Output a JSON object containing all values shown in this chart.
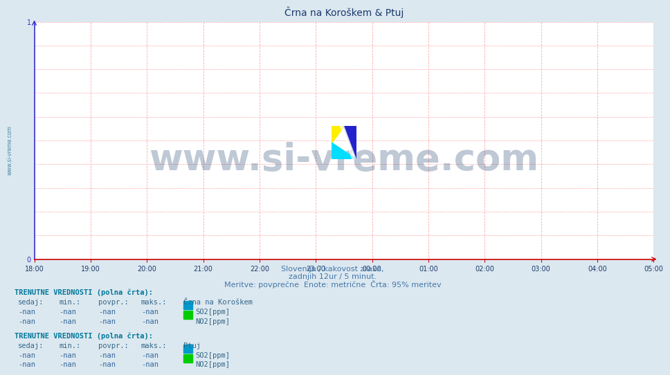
{
  "title": "Črna na Koroškem & Ptuj",
  "title_fontsize": 10,
  "title_color": "#1a3a6b",
  "bg_color": "#dce8f0",
  "plot_bg_color": "#ffffff",
  "x_ticks": [
    "18:00",
    "19:00",
    "20:00",
    "21:00",
    "22:00",
    "23:00",
    "00:00",
    "01:00",
    "02:00",
    "03:00",
    "04:00",
    "05:00"
  ],
  "x_tick_count": 12,
  "ylim": [
    0,
    1
  ],
  "yticks": [
    0,
    1
  ],
  "grid_color": "#ffaaaa",
  "axis_color_x": "#cc0000",
  "axis_color_y": "#3333cc",
  "subtitle1": "Slovenija / kakovost zraka,",
  "subtitle2": "zadnjih 12ur / 5 minut.",
  "subtitle3": "Meritve: povprečne  Enote: metrične  Črta: 95% meritev",
  "subtitle_color": "#4477aa",
  "subtitle_fontsize": 8,
  "watermark": "www.si-vreme.com",
  "watermark_color": "#1a3a6b",
  "watermark_fontsize": 38,
  "watermark_alpha": 0.28,
  "table1_header": "TRENUTNE VREDNOSTI (polna črta):",
  "table1_location": "Črna na Koroškem",
  "table1_cols": [
    "sedaj:",
    "min.:",
    "povpr.:",
    "maks.:"
  ],
  "table1_row1": [
    "-nan",
    "-nan",
    "-nan",
    "-nan"
  ],
  "table1_row2": [
    "-nan",
    "-nan",
    "-nan",
    "-nan"
  ],
  "table1_label1": "SO2[ppm]",
  "table1_label2": "NO2[ppm]",
  "table1_color1": "#0099cc",
  "table1_color2": "#00cc00",
  "table2_header": "TRENUTNE VREDNOSTI (polna črta):",
  "table2_location": "Ptuj",
  "table2_cols": [
    "sedaj:",
    "min.:",
    "povpr.:",
    "maks.:"
  ],
  "table2_row1": [
    "-nan",
    "-nan",
    "-nan",
    "-nan"
  ],
  "table2_row2": [
    "-nan",
    "-nan",
    "-nan",
    "-nan"
  ],
  "table2_label1": "SO2[ppm]",
  "table2_label2": "NO2[ppm]",
  "table2_color1": "#0099cc",
  "table2_color2": "#00cc00",
  "table_header_color": "#007799",
  "table_col_color": "#336688",
  "table_val_color": "#336699",
  "table_fontsize": 7.5,
  "side_label": "www.si-vreme.com",
  "side_label_color": "#4488aa",
  "side_label_fontsize": 5.5
}
